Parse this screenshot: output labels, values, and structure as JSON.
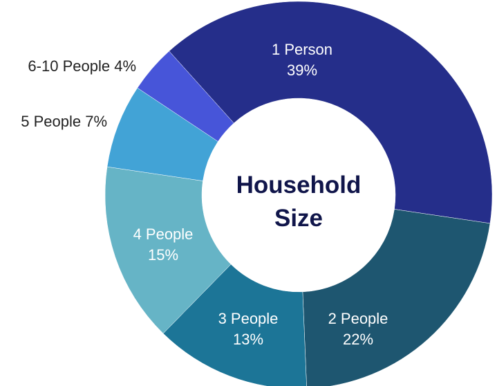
{
  "chart_data": {
    "type": "pie",
    "title": "Household Size",
    "categories": [
      "1 Person",
      "2 People",
      "3 People",
      "4 People",
      "5 People",
      "6-10 People"
    ],
    "values": [
      39,
      22,
      13,
      15,
      7,
      4
    ],
    "value_labels": [
      "39%",
      "22%",
      "13%",
      "15%",
      "7%",
      "4%"
    ],
    "colors": [
      "#252e8a",
      "#1e5670",
      "#1c7597",
      "#66b4c6",
      "#42a3d6",
      "#4755d9"
    ]
  }
}
